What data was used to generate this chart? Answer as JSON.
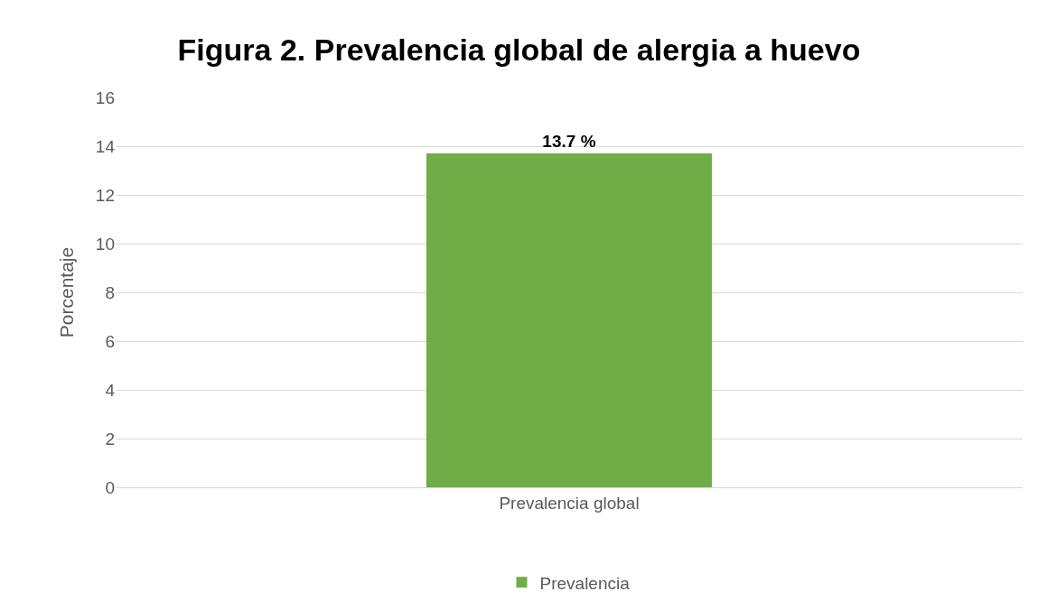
{
  "chart_data": {
    "type": "bar",
    "title": "Figura 2. Prevalencia global de alergia a huevo",
    "ylabel": "Porcentaje",
    "categories": [
      "Prevalencia global"
    ],
    "series": [
      {
        "name": "Prevalencia",
        "color": "#70ad47",
        "values": [
          13.7
        ],
        "value_labels": [
          "13.7 %"
        ]
      }
    ],
    "ylim": [
      0,
      16
    ],
    "yticks": [
      0,
      2,
      4,
      6,
      8,
      10,
      12,
      14,
      16
    ],
    "grid": "y",
    "legend": "bottom"
  }
}
